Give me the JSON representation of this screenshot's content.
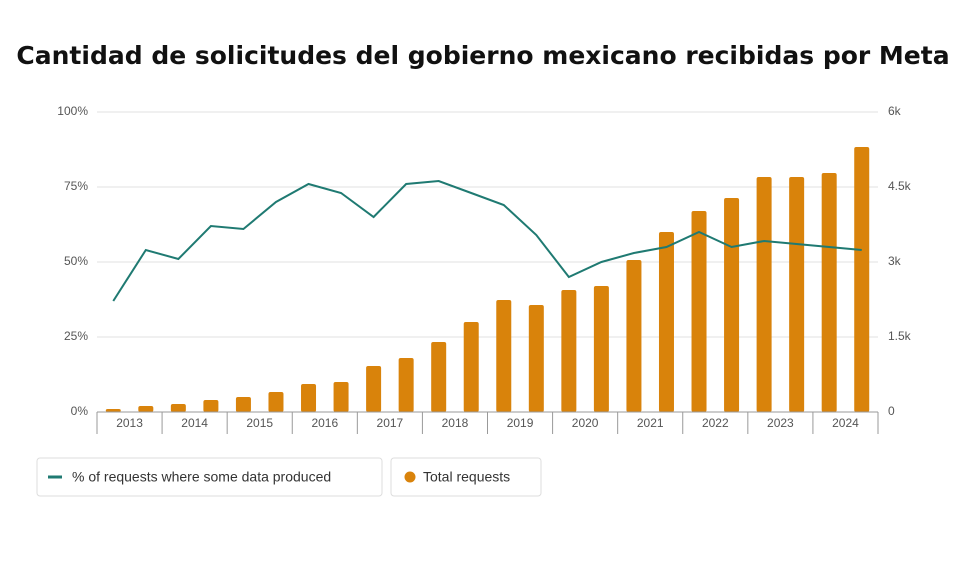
{
  "chart_data": {
    "type": "bar-line",
    "title": "Cantidad de solicitudes del gobierno mexicano recibidas por Meta",
    "categories": [
      "2013",
      null,
      "2014",
      null,
      "2015",
      null,
      "2016",
      null,
      "2017",
      null,
      "2018",
      null,
      "2019",
      null,
      "2020",
      null,
      "2021",
      null,
      "2022",
      null,
      "2023",
      null,
      "2024",
      null
    ],
    "series": [
      {
        "name": "% of requests where some data produced",
        "type": "line",
        "axis": "y",
        "color": "#1f7a72",
        "values": [
          37,
          54,
          51,
          62,
          61,
          70,
          76,
          73,
          65,
          76,
          77,
          73,
          69,
          59,
          45,
          50,
          53,
          55,
          60,
          55,
          57,
          56,
          55,
          54
        ]
      },
      {
        "name": "Total requests",
        "type": "bar",
        "axis": "y2",
        "color": "#d9830b",
        "values": [
          60,
          120,
          160,
          240,
          300,
          400,
          560,
          600,
          920,
          1080,
          1400,
          1800,
          2240,
          2140,
          2440,
          2520,
          3040,
          3600,
          4020,
          4280,
          4700,
          4700,
          4780,
          5300
        ]
      }
    ],
    "ylim": [
      0,
      100
    ],
    "yticks": [
      {
        "value": 0,
        "label": "0%"
      },
      {
        "value": 25,
        "label": "25%"
      },
      {
        "value": 50,
        "label": "50%"
      },
      {
        "value": 75,
        "label": "75%"
      },
      {
        "value": 100,
        "label": "100%"
      }
    ],
    "y2lim": [
      0,
      6000
    ],
    "y2ticks": [
      0,
      {
        "value": 1500,
        "label": "1.5k"
      },
      {
        "value": 3000,
        "label": "3k"
      },
      {
        "value": 4500,
        "label": "4.5k"
      },
      {
        "value": 6000,
        "label": "6k"
      }
    ],
    "grid": true,
    "legend": "bottom-left"
  }
}
